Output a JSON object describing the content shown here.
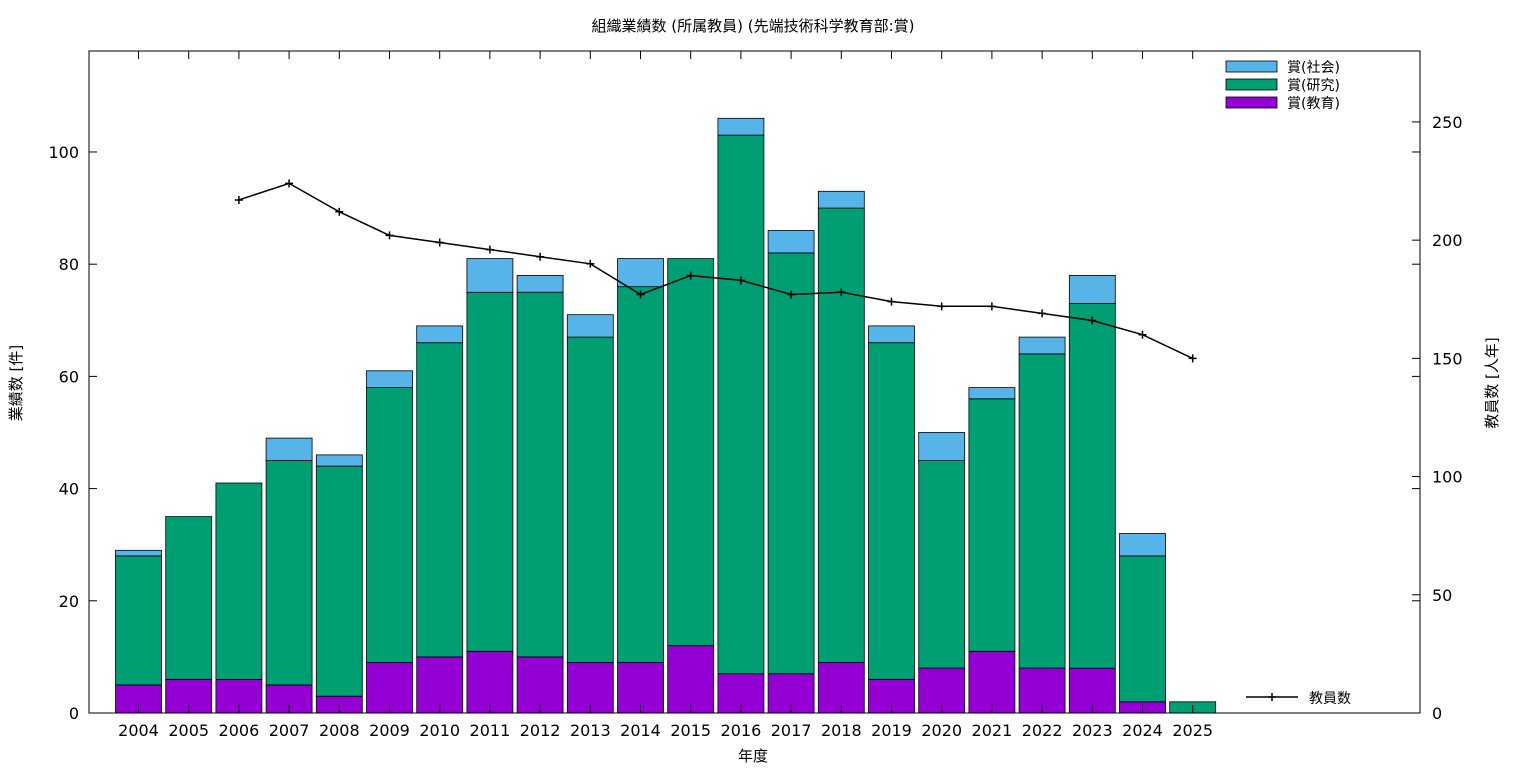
{
  "chart_data": {
    "type": "bar",
    "title": "組織業績数 (所属教員) (先端技術科学教育部:賞)",
    "xlabel": "年度",
    "ylabel": "業績数 [件]",
    "y2label": "教員数 [人年]",
    "ylim": [
      0,
      118
    ],
    "y2lim": [
      0,
      280
    ],
    "yticks": [
      0,
      20,
      40,
      60,
      80,
      100
    ],
    "y2ticks": [
      0,
      50,
      100,
      150,
      200,
      250
    ],
    "stacked": true,
    "categories": [
      "2004",
      "2005",
      "2006",
      "2007",
      "2008",
      "2009",
      "2010",
      "2011",
      "2012",
      "2013",
      "2014",
      "2015",
      "2016",
      "2017",
      "2018",
      "2019",
      "2020",
      "2021",
      "2022",
      "2023",
      "2024",
      "2025"
    ],
    "series": [
      {
        "name": "賞(教育)",
        "color": "#9400d3",
        "values": [
          5,
          6,
          6,
          5,
          3,
          9,
          10,
          11,
          10,
          9,
          9,
          12,
          7,
          7,
          9,
          6,
          8,
          11,
          8,
          8,
          2,
          0
        ]
      },
      {
        "name": "賞(研究)",
        "color": "#009e73",
        "values": [
          23,
          29,
          35,
          40,
          41,
          49,
          56,
          64,
          65,
          58,
          67,
          69,
          96,
          75,
          81,
          60,
          37,
          45,
          56,
          65,
          26,
          2
        ]
      },
      {
        "name": "賞(社会)",
        "color": "#56b4e9",
        "values": [
          1,
          0,
          0,
          4,
          2,
          3,
          3,
          6,
          3,
          4,
          5,
          0,
          3,
          4,
          3,
          3,
          5,
          2,
          3,
          5,
          4,
          0
        ]
      }
    ],
    "line_series": {
      "name": "教員数",
      "axis": "y2",
      "color": "#000000",
      "x": [
        "2006",
        "2007",
        "2008",
        "2009",
        "2010",
        "2011",
        "2012",
        "2013",
        "2014",
        "2015",
        "2016",
        "2017",
        "2018",
        "2019",
        "2020",
        "2021",
        "2022",
        "2023",
        "2024",
        "2025"
      ],
      "values": [
        217,
        224,
        212,
        202,
        199,
        196,
        193,
        190,
        177,
        185,
        183,
        177,
        178,
        174,
        172,
        172,
        169,
        166,
        160,
        150
      ]
    },
    "legend": {
      "placement": "top-right",
      "line_placement": "bottom-right"
    },
    "grid": false
  }
}
